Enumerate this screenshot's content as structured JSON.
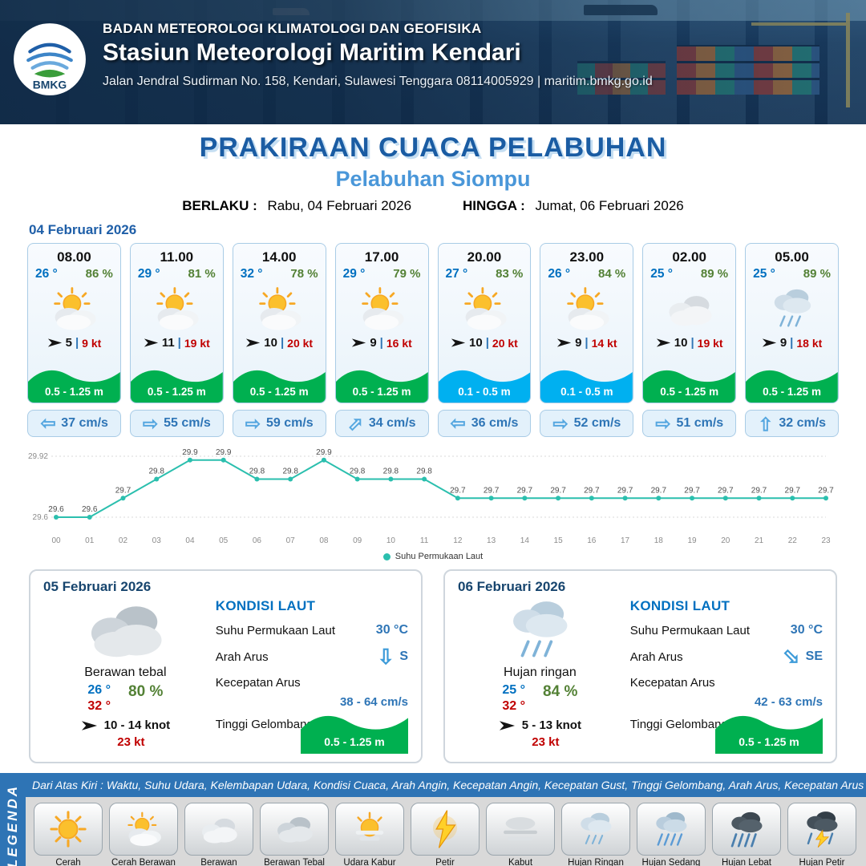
{
  "header": {
    "agency": "BADAN METEOROLOGI KLIMATOLOGI DAN GEOFISIKA",
    "station": "Stasiun Meteorologi Maritim Kendari",
    "address": "Jalan Jendral Sudirman No. 158, Kendari, Sulawesi Tenggara  08114005929 | maritim.bmkg.go.id",
    "logo": "BMKG"
  },
  "title": {
    "main": "PRAKIRAAN CUACA PELABUHAN",
    "subtitle": "Pelabuhan Siompu",
    "berlaku_label": "BERLAKU :",
    "berlaku_value": "Rabu, 04 Februari 2026",
    "hingga_label": "HINGGA :",
    "hingga_value": "Jumat, 06 Februari 2026"
  },
  "forecast": {
    "date": "04 Februari 2026",
    "wind_separator": "|",
    "cards": [
      {
        "time": "08.00",
        "temp": "26 °",
        "humidity": "86 %",
        "wind_speed": "5",
        "wind_gust": "9 kt",
        "wave": "0.5 - 1.25 m",
        "wave_color": "green",
        "current": "37 cm/s",
        "current_dir": "left",
        "icon": "sun-cloud"
      },
      {
        "time": "11.00",
        "temp": "29 °",
        "humidity": "81 %",
        "wind_speed": "11",
        "wind_gust": "19 kt",
        "wave": "0.5 - 1.25 m",
        "wave_color": "green",
        "current": "55 cm/s",
        "current_dir": "right",
        "icon": "sun-cloud"
      },
      {
        "time": "14.00",
        "temp": "32 °",
        "humidity": "78 %",
        "wind_speed": "10",
        "wind_gust": "20 kt",
        "wave": "0.5 - 1.25 m",
        "wave_color": "green",
        "current": "59 cm/s",
        "current_dir": "right",
        "icon": "sun-cloud"
      },
      {
        "time": "17.00",
        "temp": "29 °",
        "humidity": "79 %",
        "wind_speed": "9",
        "wind_gust": "16 kt",
        "wave": "0.5 - 1.25 m",
        "wave_color": "green",
        "current": "34 cm/s",
        "current_dir": "up-right",
        "icon": "sun-cloud"
      },
      {
        "time": "20.00",
        "temp": "27 °",
        "humidity": "83 %",
        "wind_speed": "10",
        "wind_gust": "20 kt",
        "wave": "0.1 - 0.5 m",
        "wave_color": "blue",
        "current": "36 cm/s",
        "current_dir": "left",
        "icon": "sun-cloud"
      },
      {
        "time": "23.00",
        "temp": "26 °",
        "humidity": "84 %",
        "wind_speed": "9",
        "wind_gust": "14 kt",
        "wave": "0.1 - 0.5 m",
        "wave_color": "blue",
        "current": "52 cm/s",
        "current_dir": "right",
        "icon": "sun-cloud"
      },
      {
        "time": "02.00",
        "temp": "25 °",
        "humidity": "89 %",
        "wind_speed": "10",
        "wind_gust": "19 kt",
        "wave": "0.5 - 1.25 m",
        "wave_color": "green",
        "current": "51 cm/s",
        "current_dir": "right",
        "icon": "cloud"
      },
      {
        "time": "05.00",
        "temp": "25 °",
        "humidity": "89 %",
        "wind_speed": "9",
        "wind_gust": "18 kt",
        "wave": "0.5 - 1.25 m",
        "wave_color": "green",
        "current": "32 cm/s",
        "current_dir": "up",
        "icon": "rain"
      }
    ]
  },
  "chart_data": {
    "type": "line",
    "x": [
      "00",
      "01",
      "02",
      "03",
      "04",
      "05",
      "06",
      "07",
      "08",
      "09",
      "10",
      "11",
      "12",
      "13",
      "14",
      "15",
      "16",
      "17",
      "18",
      "19",
      "20",
      "21",
      "22",
      "23"
    ],
    "series": [
      {
        "name": "Suhu Permukaan Laut",
        "values": [
          29.6,
          29.6,
          29.7,
          29.8,
          29.9,
          29.9,
          29.8,
          29.8,
          29.9,
          29.8,
          29.8,
          29.8,
          29.7,
          29.7,
          29.7,
          29.7,
          29.7,
          29.7,
          29.7,
          29.7,
          29.7,
          29.7,
          29.7,
          29.7
        ]
      }
    ],
    "ylim": [
      29.6,
      29.92
    ],
    "y_ticks": [
      "29.92",
      "29.6"
    ],
    "legend": "Suhu Permukaan Laut",
    "legend_position": "bottom",
    "grid": true,
    "line_color": "#2bbfae"
  },
  "daily": [
    {
      "date": "05 Februari 2026",
      "condition": "Berawan tebal",
      "icon": "cloud-thick",
      "temp_min": "26 °",
      "temp_max": "32 °",
      "humidity": "80 %",
      "wind": "10 - 14 knot",
      "gust": "23 kt",
      "sea": {
        "heading": "KONDISI LAUT",
        "sst_label": "Suhu Permukaan Laut",
        "sst_value": "30 °C",
        "current_dir_label": "Arah Arus",
        "current_dir_value": "S",
        "current_dir": "down",
        "current_speed_label": "Kecepatan Arus",
        "current_speed_value": "38 - 64 cm/s",
        "wave_label": "Tinggi Gelombang",
        "wave_value": "0.5 - 1.25 m"
      }
    },
    {
      "date": "06 Februari 2026",
      "condition": "Hujan ringan",
      "icon": "rain",
      "temp_min": "25 °",
      "temp_max": "32 °",
      "humidity": "84 %",
      "wind": "5 - 13 knot",
      "gust": "23 kt",
      "sea": {
        "heading": "KONDISI LAUT",
        "sst_label": "Suhu Permukaan Laut",
        "sst_value": "30 °C",
        "current_dir_label": "Arah Arus",
        "current_dir_value": "SE",
        "current_dir": "down-right",
        "current_speed_label": "Kecepatan Arus",
        "current_speed_value": "42 - 63 cm/s",
        "wave_label": "Tinggi Gelombang",
        "wave_value": "0.5 - 1.25 m"
      }
    }
  ],
  "legend_bar": {
    "note": "Dari Atas Kiri : Waktu, Suhu Udara, Kelembapan Udara, Kondisi Cuaca, Arah Angin, Kecepatan Angin, Kecepatan Gust, Tinggi Gelombang, Arah Arus, Kecepatan Arus",
    "title": "LEGENDA",
    "items": [
      {
        "label": "Cerah",
        "icon": "sun"
      },
      {
        "label": "Cerah Berawan",
        "icon": "sun-cloud"
      },
      {
        "label": "Berawan",
        "icon": "cloud"
      },
      {
        "label": "Berawan Tebal",
        "icon": "cloud-thick"
      },
      {
        "label": "Udara Kabur",
        "icon": "sun-haze"
      },
      {
        "label": "Petir",
        "icon": "lightning"
      },
      {
        "label": "Kabut",
        "icon": "fog"
      },
      {
        "label": "Hujan Ringan",
        "icon": "rain-light"
      },
      {
        "label": "Hujan Sedang",
        "icon": "rain-medium"
      },
      {
        "label": "Hujan Lebat",
        "icon": "rain-heavy"
      },
      {
        "label": "Hujan Petir",
        "icon": "storm"
      }
    ]
  },
  "colors": {
    "temperature_blue": "#0070c0",
    "humidity_green": "#538135",
    "gust_red": "#c00000",
    "wave_green": "#00b050",
    "wave_blue": "#00b0f0",
    "current_blue": "#2e75b6",
    "chart_teal": "#2bbfae",
    "header_navy": "#1d4269",
    "title_blue": "#1a5ca3",
    "subtitle_blue": "#4a97d9",
    "legend_bar_blue": "#2e74b5"
  }
}
